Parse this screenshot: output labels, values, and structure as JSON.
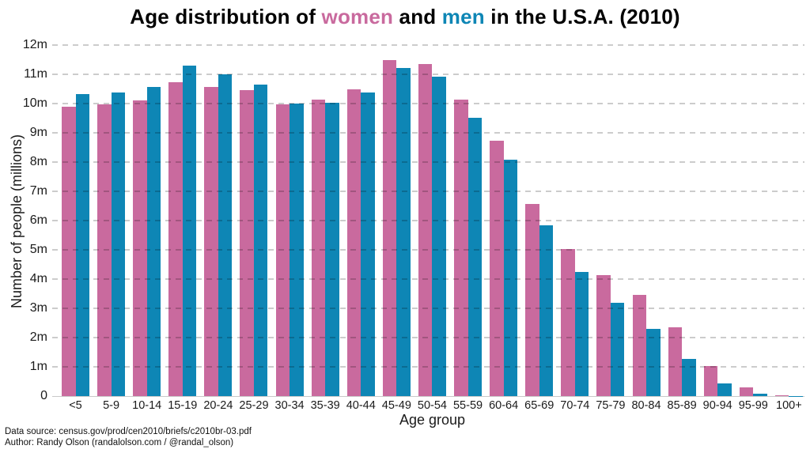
{
  "title": {
    "prefix": "Age distribution of ",
    "women_word": "women",
    "and_text": " and ",
    "men_word": "men",
    "suffix": " in the U.S.A. (2010)"
  },
  "footer": {
    "line1": "Data source: census.gov/prod/cen2010/briefs/c2010br-03.pdf",
    "line2": "Author: Randy Olson (randalolson.com / @randal_olson)"
  },
  "chart_data": {
    "type": "bar",
    "title": "Age distribution of women and men in the U.S.A. (2010)",
    "xlabel": "Age group",
    "ylabel": "Number of people (millions)",
    "ylim": [
      0,
      12
    ],
    "ytick_labels": [
      "0",
      "1m",
      "2m",
      "3m",
      "4m",
      "5m",
      "6m",
      "7m",
      "8m",
      "9m",
      "10m",
      "11m",
      "12m"
    ],
    "grid": "horizontal dashed, drawn over bars",
    "legend": "none (series named by colored words in title)",
    "categories": [
      "<5",
      "5-9",
      "10-14",
      "15-19",
      "20-24",
      "25-29",
      "30-34",
      "35-39",
      "40-44",
      "45-49",
      "50-54",
      "55-59",
      "60-64",
      "65-69",
      "70-74",
      "75-79",
      "80-84",
      "85-89",
      "90-94",
      "95-99",
      "100+"
    ],
    "series": [
      {
        "name": "women",
        "color": "#C96A9E",
        "values": [
          9.88,
          9.96,
          10.1,
          10.74,
          10.57,
          10.47,
          9.97,
          10.14,
          10.5,
          11.5,
          11.36,
          10.14,
          8.74,
          6.58,
          5.03,
          4.14,
          3.45,
          2.35,
          1.02,
          0.29,
          0.04
        ]
      },
      {
        "name": "men",
        "color": "#0E86B5",
        "values": [
          10.32,
          10.39,
          10.58,
          11.3,
          11.01,
          10.64,
          10.0,
          10.04,
          10.39,
          11.21,
          10.93,
          9.52,
          8.08,
          5.85,
          4.24,
          3.18,
          2.29,
          1.27,
          0.42,
          0.08,
          0.01
        ]
      }
    ]
  }
}
